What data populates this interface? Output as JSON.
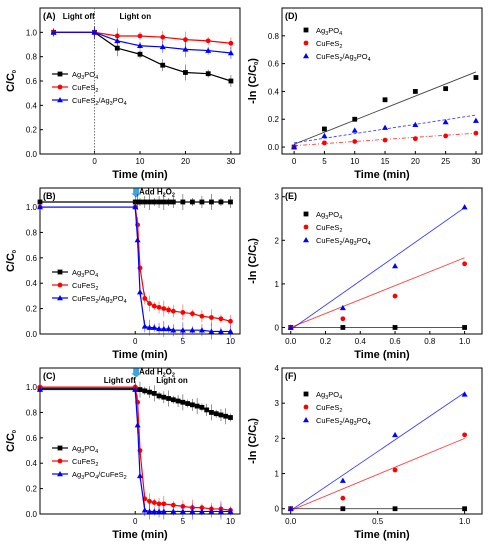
{
  "chart_data": [
    {
      "panel": "(A)",
      "type": "line",
      "xlabel": "Time (min)",
      "ylabel": "C/C0",
      "xlim": [
        -12,
        32
      ],
      "ylim": [
        0,
        1.2
      ],
      "xticks": [
        0,
        10,
        20,
        30
      ],
      "yticks": [
        0,
        0.2,
        0.4,
        0.6,
        0.8,
        1.0
      ],
      "annotations": [
        {
          "text": "Light off",
          "x": -7,
          "y": 1.11
        },
        {
          "text": "Light on",
          "x": 5.5,
          "y": 1.11
        }
      ],
      "vline": 0,
      "series": [
        {
          "name": "Ag3PO4",
          "color": "#000000",
          "marker": "square",
          "x": [
            -9,
            0,
            5,
            10,
            15,
            20,
            25,
            30
          ],
          "y": [
            1.0,
            1.0,
            0.87,
            0.82,
            0.73,
            0.67,
            0.66,
            0.6
          ]
        },
        {
          "name": "CuFeS2",
          "color": "#ff0000",
          "marker": "circle",
          "x": [
            -9,
            0,
            5,
            10,
            15,
            20,
            25,
            30
          ],
          "y": [
            1.0,
            1.0,
            0.97,
            0.97,
            0.96,
            0.94,
            0.93,
            0.91
          ]
        },
        {
          "name": "CuFeS2/Ag3PO4",
          "color": "#0000ff",
          "marker": "triangle",
          "x": [
            -9,
            0,
            5,
            10,
            15,
            20,
            25,
            30
          ],
          "y": [
            1.0,
            1.0,
            0.93,
            0.89,
            0.88,
            0.86,
            0.85,
            0.83
          ]
        }
      ]
    },
    {
      "panel": "(D)",
      "type": "scatter",
      "xlabel": "Time (min)",
      "ylabel": "-ln (C/C0)",
      "xlim": [
        -2,
        31
      ],
      "ylim": [
        -0.05,
        1.0
      ],
      "xticks": [
        0,
        5,
        10,
        15,
        20,
        25,
        30
      ],
      "yticks": [
        0.0,
        0.2,
        0.4,
        0.6,
        0.8
      ],
      "series": [
        {
          "name": "Ag3PO4",
          "color": "#000000",
          "marker": "square",
          "x": [
            0,
            5,
            10,
            15,
            20,
            25,
            30
          ],
          "y": [
            0.0,
            0.13,
            0.2,
            0.34,
            0.4,
            0.42,
            0.5
          ],
          "fit": [
            0.02,
            0.54
          ]
        },
        {
          "name": "CuFeS2",
          "color": "#ff0000",
          "marker": "circle",
          "x": [
            0,
            5,
            10,
            15,
            20,
            25,
            30
          ],
          "y": [
            0.0,
            0.03,
            0.04,
            0.05,
            0.06,
            0.08,
            0.1
          ],
          "fit": [
            0.01,
            0.1
          ]
        },
        {
          "name": "CuFeS2/Ag3PO4",
          "color": "#0000ff",
          "marker": "triangle",
          "x": [
            0,
            5,
            10,
            15,
            20,
            25,
            30
          ],
          "y": [
            0.0,
            0.08,
            0.12,
            0.14,
            0.16,
            0.18,
            0.19
          ],
          "fit": [
            0.03,
            0.23
          ]
        }
      ]
    },
    {
      "panel": "(B)",
      "type": "line",
      "xlabel": "Time (min)",
      "ylabel": "C/C0",
      "xlim": [
        -10,
        11
      ],
      "ylim": [
        0,
        1.15
      ],
      "xticks": [
        0,
        5,
        10
      ],
      "yticks": [
        0,
        0.2,
        0.4,
        0.6,
        0.8,
        1.0
      ],
      "annotations": [
        {
          "text": "Add H2O2",
          "x": 0.4,
          "y": 1.1
        }
      ],
      "series": [
        {
          "name": "Ag3PO4",
          "color": "#000000",
          "marker": "square",
          "x": [
            -10,
            0,
            0.25,
            0.5,
            1,
            1.5,
            2,
            2.5,
            3,
            3.5,
            4,
            5,
            6,
            7,
            8,
            9,
            10
          ],
          "y": [
            1.04,
            1.04,
            1.04,
            1.04,
            1.04,
            1.04,
            1.04,
            1.04,
            1.04,
            1.04,
            1.04,
            1.04,
            1.04,
            1.04,
            1.04,
            1.04,
            1.04
          ]
        },
        {
          "name": "CuFeS2",
          "color": "#ff0000",
          "marker": "circle",
          "x": [
            -10,
            0,
            0.25,
            0.5,
            1,
            1.5,
            2,
            2.5,
            3,
            3.5,
            4,
            5,
            6,
            7,
            8,
            9,
            10
          ],
          "y": [
            1.0,
            1.0,
            0.86,
            0.52,
            0.28,
            0.24,
            0.22,
            0.21,
            0.2,
            0.19,
            0.18,
            0.17,
            0.16,
            0.14,
            0.13,
            0.12,
            0.1
          ]
        },
        {
          "name": "CuFeS2/Ag3PO4",
          "color": "#0000ff",
          "marker": "triangle",
          "x": [
            -10,
            0,
            0.25,
            0.5,
            1,
            1.5,
            2,
            2.5,
            3,
            3.5,
            4,
            5,
            6,
            7,
            8,
            9,
            10
          ],
          "y": [
            1.0,
            1.0,
            0.74,
            0.33,
            0.06,
            0.05,
            0.05,
            0.04,
            0.04,
            0.04,
            0.03,
            0.03,
            0.03,
            0.03,
            0.02,
            0.02,
            0.02
          ]
        }
      ]
    },
    {
      "panel": "(E)",
      "type": "scatter",
      "xlabel": "Time (min)",
      "ylabel": "-ln (C/C0)",
      "xlim": [
        -0.05,
        1.1
      ],
      "ylim": [
        -0.15,
        3.2
      ],
      "xticks": [
        0.0,
        0.2,
        0.4,
        0.6,
        0.8,
        1.0
      ],
      "yticks": [
        0,
        1,
        2,
        3
      ],
      "series": [
        {
          "name": "Ag3PO4",
          "color": "#000000",
          "marker": "square",
          "x": [
            0,
            0.3,
            0.6,
            1.0
          ],
          "y": [
            0.0,
            0.0,
            0.0,
            0.0
          ],
          "fit": [
            0.0,
            0.0
          ]
        },
        {
          "name": "CuFeS2",
          "color": "#ff0000",
          "marker": "circle",
          "x": [
            0,
            0.3,
            0.6,
            1.0
          ],
          "y": [
            0.0,
            0.2,
            0.72,
            1.46
          ],
          "fit": [
            0.0,
            1.6
          ]
        },
        {
          "name": "CuFeS2/Ag3PO4",
          "color": "#0000ff",
          "marker": "triangle",
          "x": [
            0,
            0.3,
            0.6,
            1.0
          ],
          "y": [
            0.0,
            0.45,
            1.41,
            2.76
          ],
          "fit": [
            -0.05,
            2.75
          ]
        }
      ]
    },
    {
      "panel": "(C)",
      "type": "line",
      "xlabel": "Time (min)",
      "ylabel": "C/C0",
      "xlim": [
        -10,
        11
      ],
      "ylim": [
        0,
        1.15
      ],
      "xticks": [
        0,
        5,
        10
      ],
      "yticks": [
        0,
        0.2,
        0.4,
        0.6,
        0.8,
        1.0
      ],
      "annotations": [
        {
          "text": "Add H2O2",
          "x": 0.4,
          "y": 1.1
        },
        {
          "text": "Light off",
          "x": -3.3,
          "y": 1.03
        },
        {
          "text": "Light on",
          "x": 2.2,
          "y": 1.03
        }
      ],
      "series": [
        {
          "name": "Ag3PO4",
          "color": "#000000",
          "marker": "square",
          "x": [
            -10,
            0,
            0.5,
            1,
            1.5,
            2,
            2.5,
            3,
            3.5,
            4,
            4.5,
            5,
            5.5,
            6,
            6.5,
            7,
            7.5,
            8,
            8.5,
            9,
            9.5,
            10
          ],
          "y": [
            0.99,
            0.99,
            0.98,
            0.97,
            0.96,
            0.95,
            0.93,
            0.92,
            0.91,
            0.9,
            0.89,
            0.88,
            0.87,
            0.86,
            0.85,
            0.84,
            0.82,
            0.8,
            0.79,
            0.78,
            0.77,
            0.76
          ]
        },
        {
          "name": "CuFeS2",
          "color": "#ff0000",
          "marker": "circle",
          "x": [
            -10,
            0,
            0.25,
            0.5,
            1,
            1.5,
            2,
            2.5,
            3,
            4,
            5,
            6,
            7,
            8,
            9,
            10
          ],
          "y": [
            1.0,
            1.0,
            0.88,
            0.5,
            0.12,
            0.1,
            0.09,
            0.08,
            0.08,
            0.07,
            0.06,
            0.05,
            0.05,
            0.04,
            0.04,
            0.03
          ]
        },
        {
          "name": "Ag3PO4/CuFeS2",
          "color": "#0000ff",
          "marker": "triangle",
          "x": [
            -10,
            0,
            0.25,
            0.5,
            1,
            1.5,
            2,
            2.5,
            3,
            4,
            5,
            6,
            7,
            8,
            9,
            10
          ],
          "y": [
            0.98,
            0.98,
            0.7,
            0.3,
            0.03,
            0.02,
            0.02,
            0.02,
            0.02,
            0.02,
            0.02,
            0.02,
            0.02,
            0.02,
            0.02,
            0.02
          ]
        }
      ]
    },
    {
      "panel": "(F)",
      "type": "scatter",
      "xlabel": "Time (min)",
      "ylabel": "-ln (C/C0)",
      "xlim": [
        -0.05,
        1.1
      ],
      "ylim": [
        -0.15,
        4.0
      ],
      "xticks": [
        0.0,
        0.5,
        1.0
      ],
      "yticks": [
        0,
        1,
        2,
        3,
        4
      ],
      "series": [
        {
          "name": "Ag3PO4",
          "color": "#000000",
          "marker": "square",
          "x": [
            0,
            0.3,
            0.6,
            1.0
          ],
          "y": [
            0.0,
            0.0,
            0.0,
            0.0
          ],
          "fit": [
            0.0,
            0.0
          ]
        },
        {
          "name": "CuFeS2",
          "color": "#ff0000",
          "marker": "circle",
          "x": [
            0,
            0.3,
            0.6,
            1.0
          ],
          "y": [
            0.0,
            0.3,
            1.1,
            2.1
          ],
          "fit": [
            -0.05,
            2.0
          ]
        },
        {
          "name": "CuFeS2/Ag3PO4",
          "color": "#0000ff",
          "marker": "triangle",
          "x": [
            0,
            0.3,
            0.6,
            1.0
          ],
          "y": [
            0.0,
            0.8,
            2.1,
            3.25
          ],
          "fit": [
            -0.05,
            3.3
          ]
        }
      ]
    }
  ]
}
